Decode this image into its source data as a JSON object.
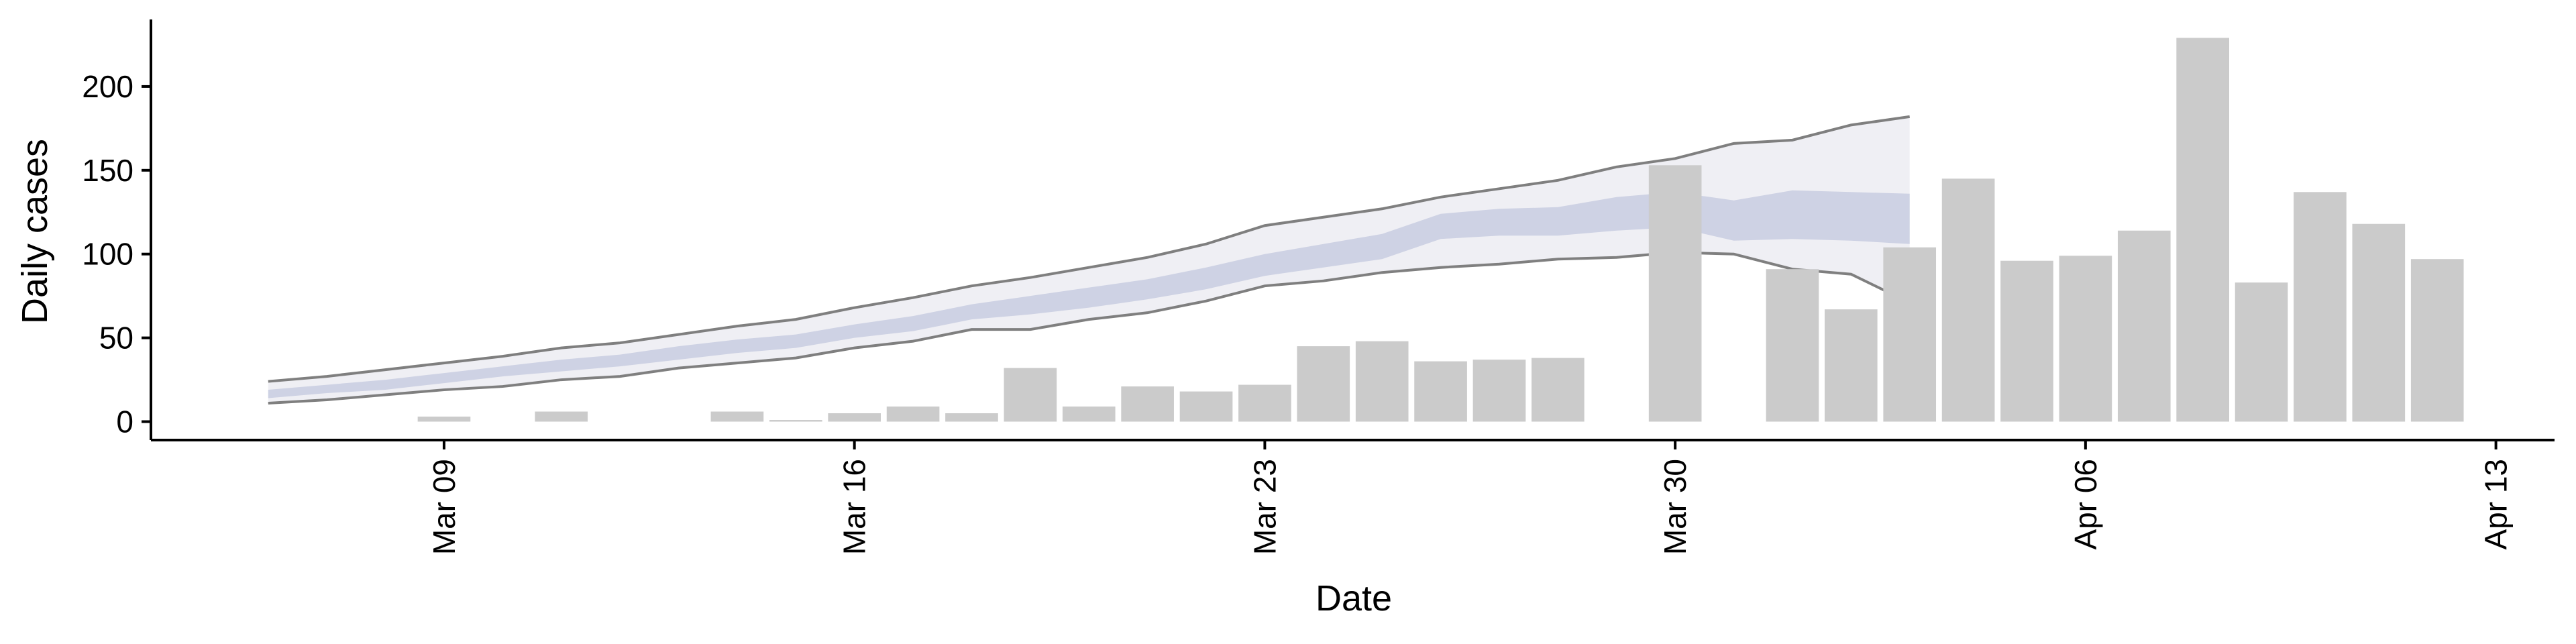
{
  "chart_data": {
    "type": "bar",
    "x_label": "Date",
    "y_label": "Daily cases",
    "x": [
      "Mar 09",
      "Mar 11",
      "Mar 14",
      "Mar 15",
      "Mar 16",
      "Mar 17",
      "Mar 18",
      "Mar 19",
      "Mar 20",
      "Mar 21",
      "Mar 22",
      "Mar 23",
      "Mar 24",
      "Mar 25",
      "Mar 26",
      "Mar 27",
      "Mar 28",
      "Mar 30",
      "Apr 01",
      "Apr 02",
      "Apr 03",
      "Apr 04",
      "Apr 05",
      "Apr 06",
      "Apr 07",
      "Apr 08",
      "Apr 09",
      "Apr 10",
      "Apr 11",
      "Apr 12"
    ],
    "values": [
      3,
      6,
      6,
      1,
      5,
      9,
      5,
      32,
      9,
      21,
      18,
      22,
      45,
      48,
      36,
      37,
      38,
      153,
      91,
      67,
      104,
      145,
      96,
      99,
      114,
      229,
      83,
      137,
      118,
      97
    ],
    "color": "#cbcbcb",
    "interval_x": [
      "Mar 06",
      "Mar 07",
      "Mar 08",
      "Mar 09",
      "Mar 10",
      "Mar 11",
      "Mar 12",
      "Mar 13",
      "Mar 14",
      "Mar 15",
      "Mar 16",
      "Mar 17",
      "Mar 18",
      "Mar 19",
      "Mar 20",
      "Mar 21",
      "Mar 22",
      "Mar 23",
      "Mar 24",
      "Mar 25",
      "Mar 26",
      "Mar 27",
      "Mar 28",
      "Mar 29",
      "Mar 30",
      "Mar 31",
      "Apr 01",
      "Apr 02",
      "Apr 03"
    ],
    "intervals": [
      {
        "upper": [
          24,
          27,
          31,
          35,
          39,
          44,
          47,
          52,
          57,
          61,
          68,
          74,
          81,
          86,
          92,
          98,
          106,
          117,
          122,
          127,
          134,
          139,
          144,
          152,
          157,
          166,
          168,
          177,
          182
        ],
        "lower": [
          11,
          13,
          16,
          19,
          21,
          25,
          27,
          32,
          35,
          38,
          44,
          48,
          55,
          55,
          61,
          65,
          72,
          81,
          84,
          89,
          92,
          94,
          97,
          98,
          101,
          100,
          91,
          88,
          71
        ],
        "color": "#ececf2",
        "line_color": "#7f7f7f"
      },
      {
        "upper": [
          19,
          22,
          25,
          29,
          33,
          37,
          40,
          45,
          49,
          52,
          58,
          63,
          70,
          75,
          80,
          85,
          92,
          100,
          106,
          112,
          124,
          127,
          128,
          134,
          137,
          132,
          138,
          137,
          136
        ],
        "lower": [
          14,
          17,
          19,
          23,
          27,
          30,
          33,
          37,
          41,
          44,
          50,
          54,
          61,
          64,
          68,
          73,
          79,
          87,
          92,
          97,
          109,
          111,
          111,
          114,
          116,
          108,
          109,
          108,
          106
        ],
        "color": "#c8cce0"
      }
    ],
    "xlim": [
      "Mar 04",
      "Apr 14"
    ],
    "xticks": [
      "Mar 09",
      "Mar 16",
      "Mar 23",
      "Mar 30",
      "Apr 06",
      "Apr 13"
    ],
    "ylim": [
      -11,
      240
    ],
    "yticks": [
      0,
      50,
      100,
      150,
      200
    ]
  }
}
